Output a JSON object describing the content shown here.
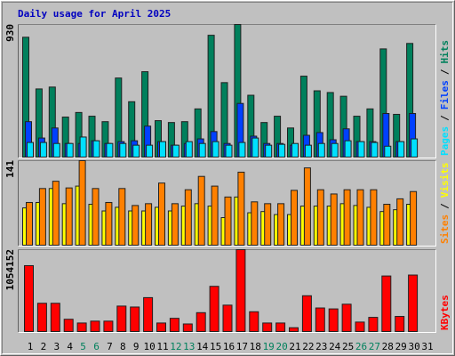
{
  "chart_data": [
    {
      "type": "bar",
      "title": "Daily usage for April 2025",
      "title_color": "#0000c0",
      "ylim": [
        0,
        930
      ],
      "yticks": [
        930
      ],
      "legend_separator": "/",
      "series": [
        {
          "name": "Hits",
          "color": "#00805c",
          "values": [
            841,
            481,
            494,
            285,
            317,
            291,
            253,
            557,
            392,
            601,
            260,
            247,
            253,
            342,
            855,
            525,
            930,
            437,
            247,
            291,
            209,
            570,
            468,
            456,
            430,
            291,
            342,
            760,
            304,
            798,
            null
          ]
        },
        {
          "name": "Files",
          "color": "#0040ff",
          "values": [
            253,
            139,
            209,
            101,
            101,
            120,
            101,
            114,
            120,
            222,
            114,
            89,
            101,
            133,
            184,
            101,
            380,
            152,
            101,
            101,
            89,
            158,
            177,
            127,
            203,
            114,
            114,
            310,
            114,
            310,
            null
          ]
        },
        {
          "name": "Pages",
          "color": "#00e0ff",
          "values": [
            108,
            108,
            101,
            101,
            146,
            120,
            101,
            101,
            89,
            89,
            114,
            89,
            114,
            101,
            114,
            89,
            108,
            139,
            89,
            95,
            101,
            89,
            101,
            101,
            120,
            114,
            108,
            82,
            114,
            133,
            null
          ]
        }
      ]
    },
    {
      "type": "bar",
      "ylim": [
        0,
        141
      ],
      "yticks": [
        141
      ],
      "legend_separator": "/",
      "series": [
        {
          "name": "Visits",
          "color": "#ffff00",
          "values": [
            63,
            72,
            95,
            70,
            99,
            69,
            58,
            64,
            58,
            58,
            64,
            58,
            66,
            70,
            66,
            47,
            81,
            55,
            57,
            52,
            52,
            66,
            66,
            66,
            70,
            67,
            64,
            57,
            60,
            69,
            null
          ]
        },
        {
          "name": "Sites",
          "color": "#ff8000",
          "values": [
            72,
            95,
            107,
            96,
            141,
            95,
            72,
            95,
            67,
            70,
            104,
            70,
            93,
            115,
            99,
            81,
            122,
            73,
            70,
            70,
            92,
            129,
            93,
            86,
            93,
            93,
            93,
            69,
            78,
            90,
            null
          ]
        }
      ]
    },
    {
      "type": "bar",
      "ylim": [
        0,
        1054152
      ],
      "yticks": [
        1054152
      ],
      "categories": [
        "1",
        "2",
        "3",
        "4",
        "5",
        "6",
        "7",
        "8",
        "9",
        "10",
        "11",
        "12",
        "13",
        "14",
        "15",
        "16",
        "17",
        "18",
        "19",
        "20",
        "21",
        "22",
        "23",
        "24",
        "25",
        "26",
        "27",
        "28",
        "29",
        "30",
        "31"
      ],
      "category_colors": [
        "#000000",
        "#000000",
        "#000000",
        "#000000",
        "#00805c",
        "#00805c",
        "#000000",
        "#000000",
        "#000000",
        "#000000",
        "#000000",
        "#00805c",
        "#00805c",
        "#000000",
        "#000000",
        "#000000",
        "#000000",
        "#000000",
        "#00805c",
        "#00805c",
        "#000000",
        "#000000",
        "#000000",
        "#000000",
        "#000000",
        "#00805c",
        "#00805c",
        "#000000",
        "#000000",
        "#000000",
        "#000000"
      ],
      "series": [
        {
          "name": "KBytes",
          "color": "#ff0000",
          "values": [
            850509,
            371349,
            371349,
            167706,
            119790,
            143748,
            143748,
            335412,
            323433,
            443223,
            119790,
            179685,
            107811,
            251559,
            586971,
            347391,
            1054152,
            263538,
            119790,
            119790,
            59895,
            467181,
            311454,
            299475,
            359370,
            131769,
            191664,
            718740,
            203643,
            730719,
            null
          ]
        }
      ]
    }
  ]
}
